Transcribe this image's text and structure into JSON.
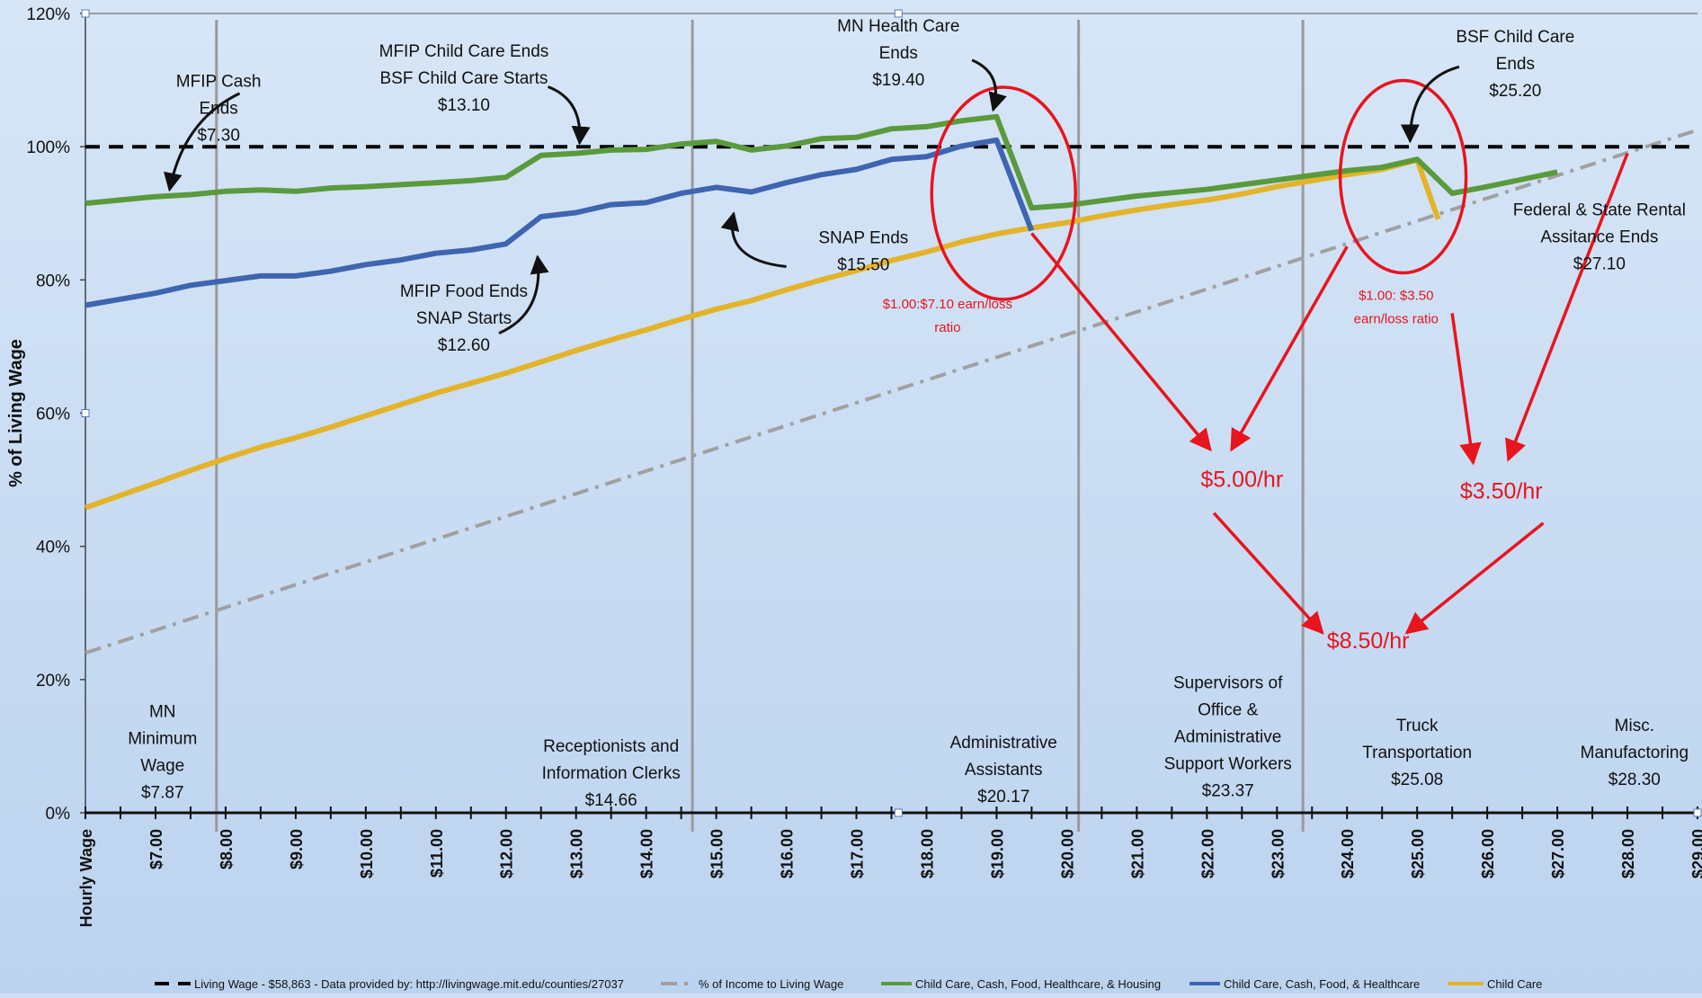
{
  "chart_data": {
    "type": "line",
    "ylabel": "% of Living Wage",
    "xlabel": "Hourly Wage",
    "xlim": [
      6.0,
      29.0
    ],
    "ylim": [
      0,
      120
    ],
    "y_ticks": [
      "0%",
      "20%",
      "40%",
      "60%",
      "80%",
      "100%",
      "120%"
    ],
    "x_ticks": [
      "$7.00",
      "$8.00",
      "$9.00",
      "$10.00",
      "$11.00",
      "$12.00",
      "$13.00",
      "$14.00",
      "$15.00",
      "$16.00",
      "$17.00",
      "$18.00",
      "$19.00",
      "$20.00",
      "$21.00",
      "$22.00",
      "$23.00",
      "$24.00",
      "$25.00",
      "$26.00",
      "$27.00",
      "$28.00",
      "$29.00"
    ],
    "legend": [
      "Living Wage - $58,863 - Data provided by:  http://livingwage.mit.edu/counties/27037",
      "% of Income to Living Wage",
      "Child Care, Cash, Food, Healthcare, & Housing",
      "Child Care, Cash, Food, & Healthcare",
      "Child Care"
    ],
    "colors": {
      "living_wage": "#000000",
      "income": "#a0a0a0",
      "all": "#5a9a3c",
      "ccfh": "#3f64b0",
      "cc": "#e3b42a",
      "annotation_red": "#e8141e",
      "background": "#cfe0f5"
    },
    "series": [
      {
        "key": "living_wage",
        "name": "Living Wage - $58,863 - Data provided by:  http://livingwage.mit.edu/counties/27037",
        "x": [
          6.0,
          29.0
        ],
        "y": [
          100,
          100
        ]
      },
      {
        "key": "income",
        "name": "% of Income to Living Wage",
        "x": [
          6.0,
          29.0
        ],
        "y": [
          24,
          102.5
        ]
      },
      {
        "key": "all",
        "name": "Child Care, Cash, Food, Healthcare, & Housing",
        "x": [
          6.0,
          7.0,
          7.5,
          8.0,
          8.5,
          9.0,
          9.5,
          10.0,
          10.5,
          11.0,
          11.5,
          12.0,
          12.5,
          13.0,
          13.5,
          14.0,
          14.5,
          15.0,
          15.5,
          16.0,
          16.5,
          17.0,
          17.5,
          18.0,
          18.5,
          19.0,
          19.5,
          20.0,
          20.5,
          21.0,
          21.5,
          22.0,
          22.5,
          23.0,
          23.5,
          24.0,
          24.5,
          25.0,
          25.5,
          26.0,
          26.5,
          27.0
        ],
        "y": [
          91.5,
          92.5,
          92.8,
          93.3,
          93.5,
          93.3,
          93.8,
          94.0,
          94.3,
          94.6,
          94.9,
          95.4,
          98.7,
          99.0,
          99.5,
          99.6,
          100.4,
          100.8,
          99.5,
          100.1,
          101.2,
          101.4,
          102.7,
          103.0,
          103.9,
          104.5,
          90.8,
          91.2,
          91.9,
          92.6,
          93.1,
          93.6,
          94.3,
          95.0,
          95.7,
          96.4,
          96.9,
          98.1,
          93.0,
          94.0,
          95.1,
          96.2
        ]
      },
      {
        "key": "ccfh",
        "name": "Child Care, Cash, Food, & Healthcare",
        "x": [
          6.0,
          7.0,
          7.5,
          8.0,
          8.5,
          9.0,
          9.5,
          10.0,
          10.5,
          11.0,
          11.5,
          12.0,
          12.5,
          13.0,
          13.5,
          14.0,
          14.5,
          15.0,
          15.5,
          16.0,
          16.5,
          17.0,
          17.5,
          18.0,
          18.5,
          19.0,
          19.5
        ],
        "y": [
          76.2,
          78.0,
          79.2,
          79.9,
          80.6,
          80.6,
          81.3,
          82.3,
          83.0,
          84.0,
          84.5,
          85.4,
          89.5,
          90.1,
          91.3,
          91.6,
          93.0,
          93.9,
          93.2,
          94.6,
          95.8,
          96.6,
          98.1,
          98.5,
          100.1,
          101.0,
          87.4
        ]
      },
      {
        "key": "cc",
        "name": "Child Care",
        "x": [
          6.0,
          7.0,
          7.5,
          8.0,
          8.5,
          9.0,
          9.5,
          10.0,
          10.5,
          11.0,
          11.5,
          12.0,
          12.5,
          13.0,
          13.5,
          14.0,
          14.5,
          15.0,
          15.5,
          16.0,
          16.5,
          17.0,
          17.5,
          18.0,
          18.5,
          19.0,
          19.5,
          20.0,
          20.5,
          21.0,
          21.5,
          22.0,
          22.5,
          23.0,
          23.5,
          24.0,
          24.5,
          25.0,
          25.3
        ],
        "y": [
          45.8,
          49.5,
          51.4,
          53.2,
          54.9,
          56.3,
          57.9,
          59.6,
          61.3,
          63.0,
          64.5,
          66.0,
          67.7,
          69.4,
          71.0,
          72.5,
          74.1,
          75.6,
          76.9,
          78.5,
          80.0,
          81.4,
          82.9,
          84.2,
          85.7,
          86.9,
          87.8,
          88.6,
          89.6,
          90.5,
          91.3,
          92.0,
          92.9,
          94.0,
          94.9,
          95.8,
          96.6,
          98.0,
          89.1
        ]
      }
    ],
    "annotations": [
      {
        "lines": [
          "MFIP Cash",
          "Ends",
          "$7.30"
        ],
        "x": 7.9,
        "y": 109
      },
      {
        "lines": [
          "MFIP Child Care Ends",
          "BSF Child Care Starts",
          "$13.10"
        ],
        "x": 11.4,
        "y": 113.5
      },
      {
        "lines": [
          "MN Health Care",
          "Ends",
          "$19.40"
        ],
        "x": 17.6,
        "y": 117.3
      },
      {
        "lines": [
          "BSF Child Care",
          "Ends",
          "$25.20"
        ],
        "x": 26.4,
        "y": 115.7
      },
      {
        "lines": [
          "SNAP Ends",
          "$15.50"
        ],
        "x": 17.1,
        "y": 85.5
      },
      {
        "lines": [
          "MFIP Food Ends",
          "SNAP Starts",
          "$12.60"
        ],
        "x": 11.4,
        "y": 77.5
      },
      {
        "lines": [
          "Federal & State Rental",
          "Assitance Ends",
          "$27.10"
        ],
        "x": 27.6,
        "y": 89.7
      },
      {
        "lines": [
          "MN",
          "Minimum",
          "Wage",
          "$7.87"
        ],
        "x": 7.1,
        "y": 14.4
      },
      {
        "lines": [
          "Receptionists and",
          "Information Clerks",
          "$14.66"
        ],
        "x": 13.5,
        "y": 9.2
      },
      {
        "lines": [
          "Administrative",
          "Assistants",
          "$20.17"
        ],
        "x": 19.1,
        "y": 9.7
      },
      {
        "lines": [
          "Supervisors of",
          "Office &",
          "Administrative",
          "Support Workers",
          "$23.37"
        ],
        "x": 22.3,
        "y": 18.7
      },
      {
        "lines": [
          "Truck",
          "Transportation",
          "$25.08"
        ],
        "x": 25.0,
        "y": 12.3
      },
      {
        "lines": [
          "Misc.",
          "Manufactoring",
          "$28.30"
        ],
        "x": 28.1,
        "y": 12.3
      }
    ],
    "ratio_notes": [
      {
        "lines": [
          "$1.00:$7.10  earn/loss",
          "ratio"
        ],
        "x": 18.3,
        "y": 75.7
      },
      {
        "lines": [
          "$1.00: $3.50",
          "earn/loss ratio"
        ],
        "x": 24.7,
        "y": 77.0
      }
    ],
    "losses": [
      {
        "text": "$5.00/hr",
        "x": 22.5,
        "y": 48.9
      },
      {
        "text": "$3.50/hr",
        "x": 26.2,
        "y": 47.2
      },
      {
        "text": "$8.50/hr",
        "x": 24.3,
        "y": 24.7
      }
    ],
    "occupation_lines_x": [
      7.87,
      14.66,
      20.17,
      23.37
    ]
  }
}
